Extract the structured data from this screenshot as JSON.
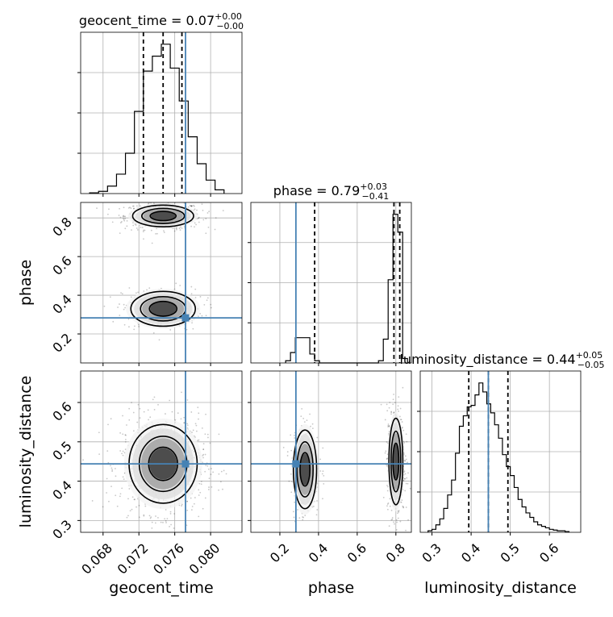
{
  "colors": {
    "truth": "#4682b4",
    "hist": "#000000",
    "grid": "#b0b0b0",
    "scatter": "#000000"
  },
  "chart_data": {
    "type": "corner",
    "parameters": [
      {
        "name": "geocent_time",
        "axis_label": "geocent_time",
        "title_main": "geocent_time = 0.07",
        "title_sup": "+0.00",
        "title_sub": "−0.00",
        "range": [
          0.0655,
          0.0835
        ],
        "ticks": [
          0.068,
          0.072,
          0.076,
          0.08
        ],
        "tick_labels": [
          "0.068",
          "0.072",
          "0.076",
          "0.080"
        ],
        "truth": 0.0772,
        "quantiles": [
          0.0725,
          0.0747,
          0.0768
        ],
        "hist_edges": [
          0.0665,
          0.0675,
          0.0685,
          0.0695,
          0.0705,
          0.0715,
          0.0725,
          0.0735,
          0.0745,
          0.0755,
          0.0765,
          0.0775,
          0.0785,
          0.0795,
          0.0805,
          0.0815
        ],
        "hist_counts": [
          0.5,
          1.5,
          5,
          13,
          27,
          55,
          82,
          92,
          100,
          84,
          62,
          38,
          20,
          9,
          2.5
        ]
      },
      {
        "name": "phase",
        "axis_label": "phase",
        "title_main": "phase = 0.79",
        "title_sup": "+0.03",
        "title_sub": "−0.41",
        "range": [
          0.05,
          0.88
        ],
        "ticks": [
          0.2,
          0.4,
          0.6,
          0.8
        ],
        "tick_labels": [
          "0.2",
          "0.4",
          "0.6",
          "0.8"
        ],
        "truth": 0.283,
        "quantiles": [
          0.38,
          0.79,
          0.82
        ],
        "hist_edges": [
          0.23,
          0.255,
          0.28,
          0.305,
          0.33,
          0.355,
          0.38,
          0.405,
          0.43,
          0.71,
          0.735,
          0.76,
          0.785,
          0.81,
          0.835,
          0.86
        ],
        "hist_counts": [
          1.5,
          7,
          17,
          17,
          17,
          6,
          1.5,
          0,
          0,
          1.5,
          16,
          56,
          100,
          88,
          3
        ]
      },
      {
        "name": "luminosity_distance",
        "axis_label": "luminosity_distance",
        "title_main": "luminosity_distance = 0.44",
        "title_sup": "+0.05",
        "title_sub": "−0.05",
        "range": [
          0.27,
          0.68
        ],
        "ticks": [
          0.3,
          0.4,
          0.5,
          0.6
        ],
        "tick_labels": [
          "0.3",
          "0.4",
          "0.5",
          "0.6"
        ],
        "truth": 0.444,
        "quantiles": [
          0.394,
          0.444,
          0.494
        ],
        "hist_edges": [
          0.29,
          0.3,
          0.31,
          0.32,
          0.33,
          0.34,
          0.35,
          0.36,
          0.37,
          0.38,
          0.39,
          0.4,
          0.41,
          0.42,
          0.43,
          0.44,
          0.45,
          0.46,
          0.47,
          0.48,
          0.49,
          0.5,
          0.51,
          0.52,
          0.53,
          0.54,
          0.55,
          0.56,
          0.57,
          0.58,
          0.59,
          0.6,
          0.61,
          0.62,
          0.63,
          0.64,
          0.65
        ],
        "hist_counts": [
          1,
          2,
          5,
          9,
          16,
          25,
          35,
          53,
          71,
          78,
          84,
          85,
          92,
          100,
          94,
          86,
          80,
          72,
          63,
          52,
          44,
          38,
          30,
          22,
          17,
          13,
          10,
          7,
          5,
          4,
          3,
          2,
          1.5,
          1,
          1,
          0.5
        ]
      }
    ],
    "pair_panels": [
      {
        "x": 0,
        "y": 1,
        "clusters": [
          {
            "cx": 0.0747,
            "cy": 0.81,
            "sx": 0.0017,
            "sy": 0.028,
            "n": 620
          },
          {
            "cx": 0.0747,
            "cy": 0.33,
            "sx": 0.0018,
            "sy": 0.045,
            "n": 260
          }
        ]
      },
      {
        "x": 0,
        "y": 2,
        "clusters": [
          {
            "cx": 0.0747,
            "cy": 0.444,
            "sx": 0.0019,
            "sy": 0.05,
            "n": 900
          }
        ]
      },
      {
        "x": 1,
        "y": 2,
        "clusters": [
          {
            "cx": 0.8,
            "cy": 0.45,
            "sx": 0.018,
            "sy": 0.055,
            "n": 620
          },
          {
            "cx": 0.33,
            "cy": 0.43,
            "sx": 0.03,
            "sy": 0.05,
            "n": 260
          }
        ]
      }
    ]
  }
}
